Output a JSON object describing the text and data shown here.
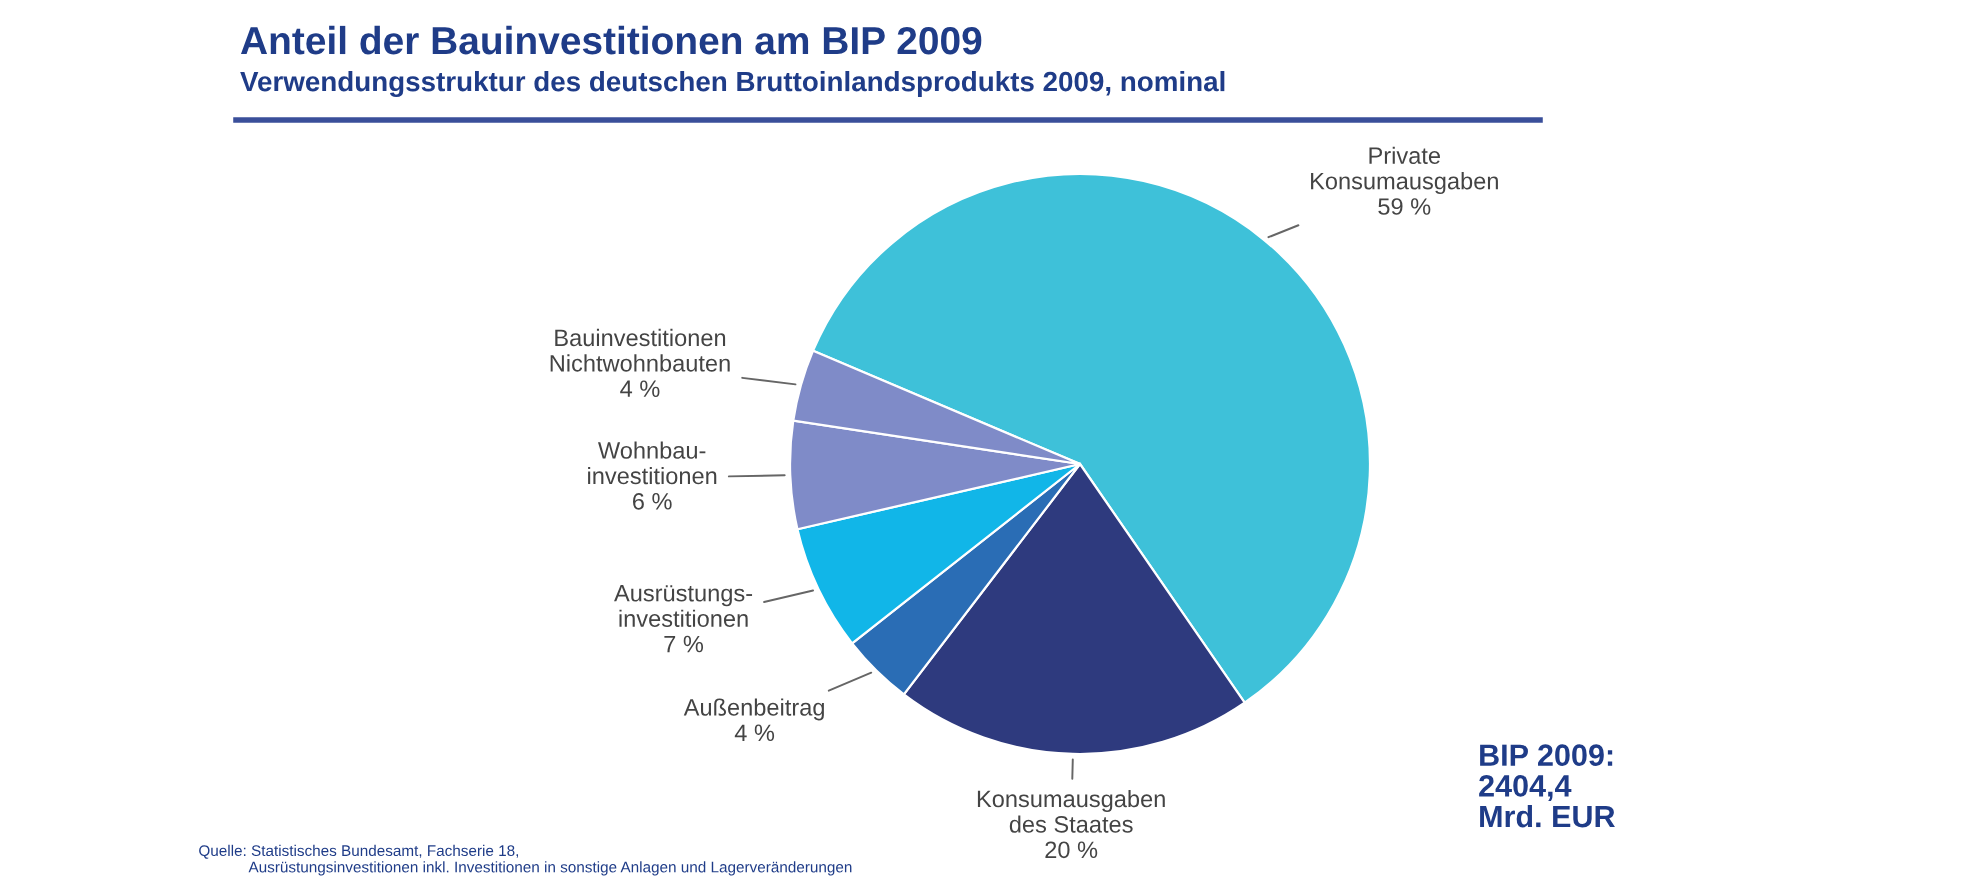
{
  "chart_data": {
    "type": "pie",
    "title": "Anteil der Bauinvestitionen am BIP 2009",
    "subtitle": "Verwendungsstruktur des deutschen Bruttoinlandsprodukts 2009, nominal",
    "categories": [
      "Private\nKonsumausgaben",
      "Konsumausgaben\ndes Staates",
      "Außenbeitrag",
      "Ausrüstungs-\ninvestitionen",
      "Wohnbau-\ninvestitionen",
      "Bauinvestitionen\nNichtwohnbauten"
    ],
    "values": [
      59,
      20,
      4,
      7,
      6,
      4
    ],
    "value_labels": [
      "59 %",
      "20 %",
      "4 %",
      "7 %",
      "6 %",
      "4 %"
    ],
    "colors": [
      "#3ec1d9",
      "#2e3a7e",
      "#2a6db5",
      "#11b6e8",
      "#7f8bc8",
      "#7f8bc8"
    ],
    "annotations": [
      "BIP 2009:\n2404,4\nMrd. EUR",
      "Quelle: Statistisches Bundesamt, Fachserie 18,\n            Ausrüstungsinvestitionen inkl. Investitionen in sonstige Anlagen und Lagerveränderungen"
    ]
  }
}
